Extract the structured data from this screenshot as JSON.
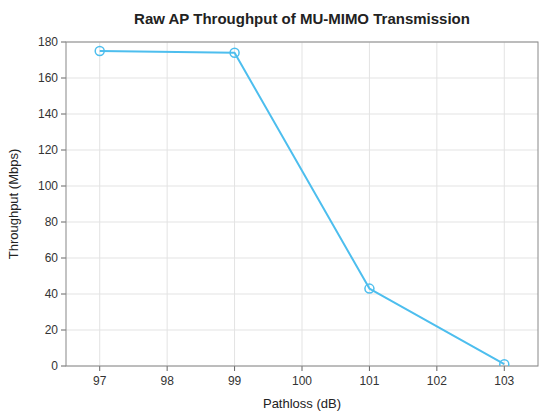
{
  "chart_data": {
    "type": "line",
    "title": "Raw AP Throughput of MU-MIMO Transmission",
    "xlabel": "Pathloss (dB)",
    "ylabel": "Throughput (Mbps)",
    "x": [
      97,
      99,
      101,
      103
    ],
    "values": [
      175,
      174,
      43,
      1
    ],
    "color": "#4DBEEE",
    "marker": "circle",
    "xlim": [
      96.5,
      103.5
    ],
    "ylim": [
      0,
      180
    ],
    "xticks": [
      97,
      98,
      99,
      100,
      101,
      102,
      103
    ],
    "yticks": [
      0,
      20,
      40,
      60,
      80,
      100,
      120,
      140,
      160,
      180
    ],
    "grid": true
  }
}
